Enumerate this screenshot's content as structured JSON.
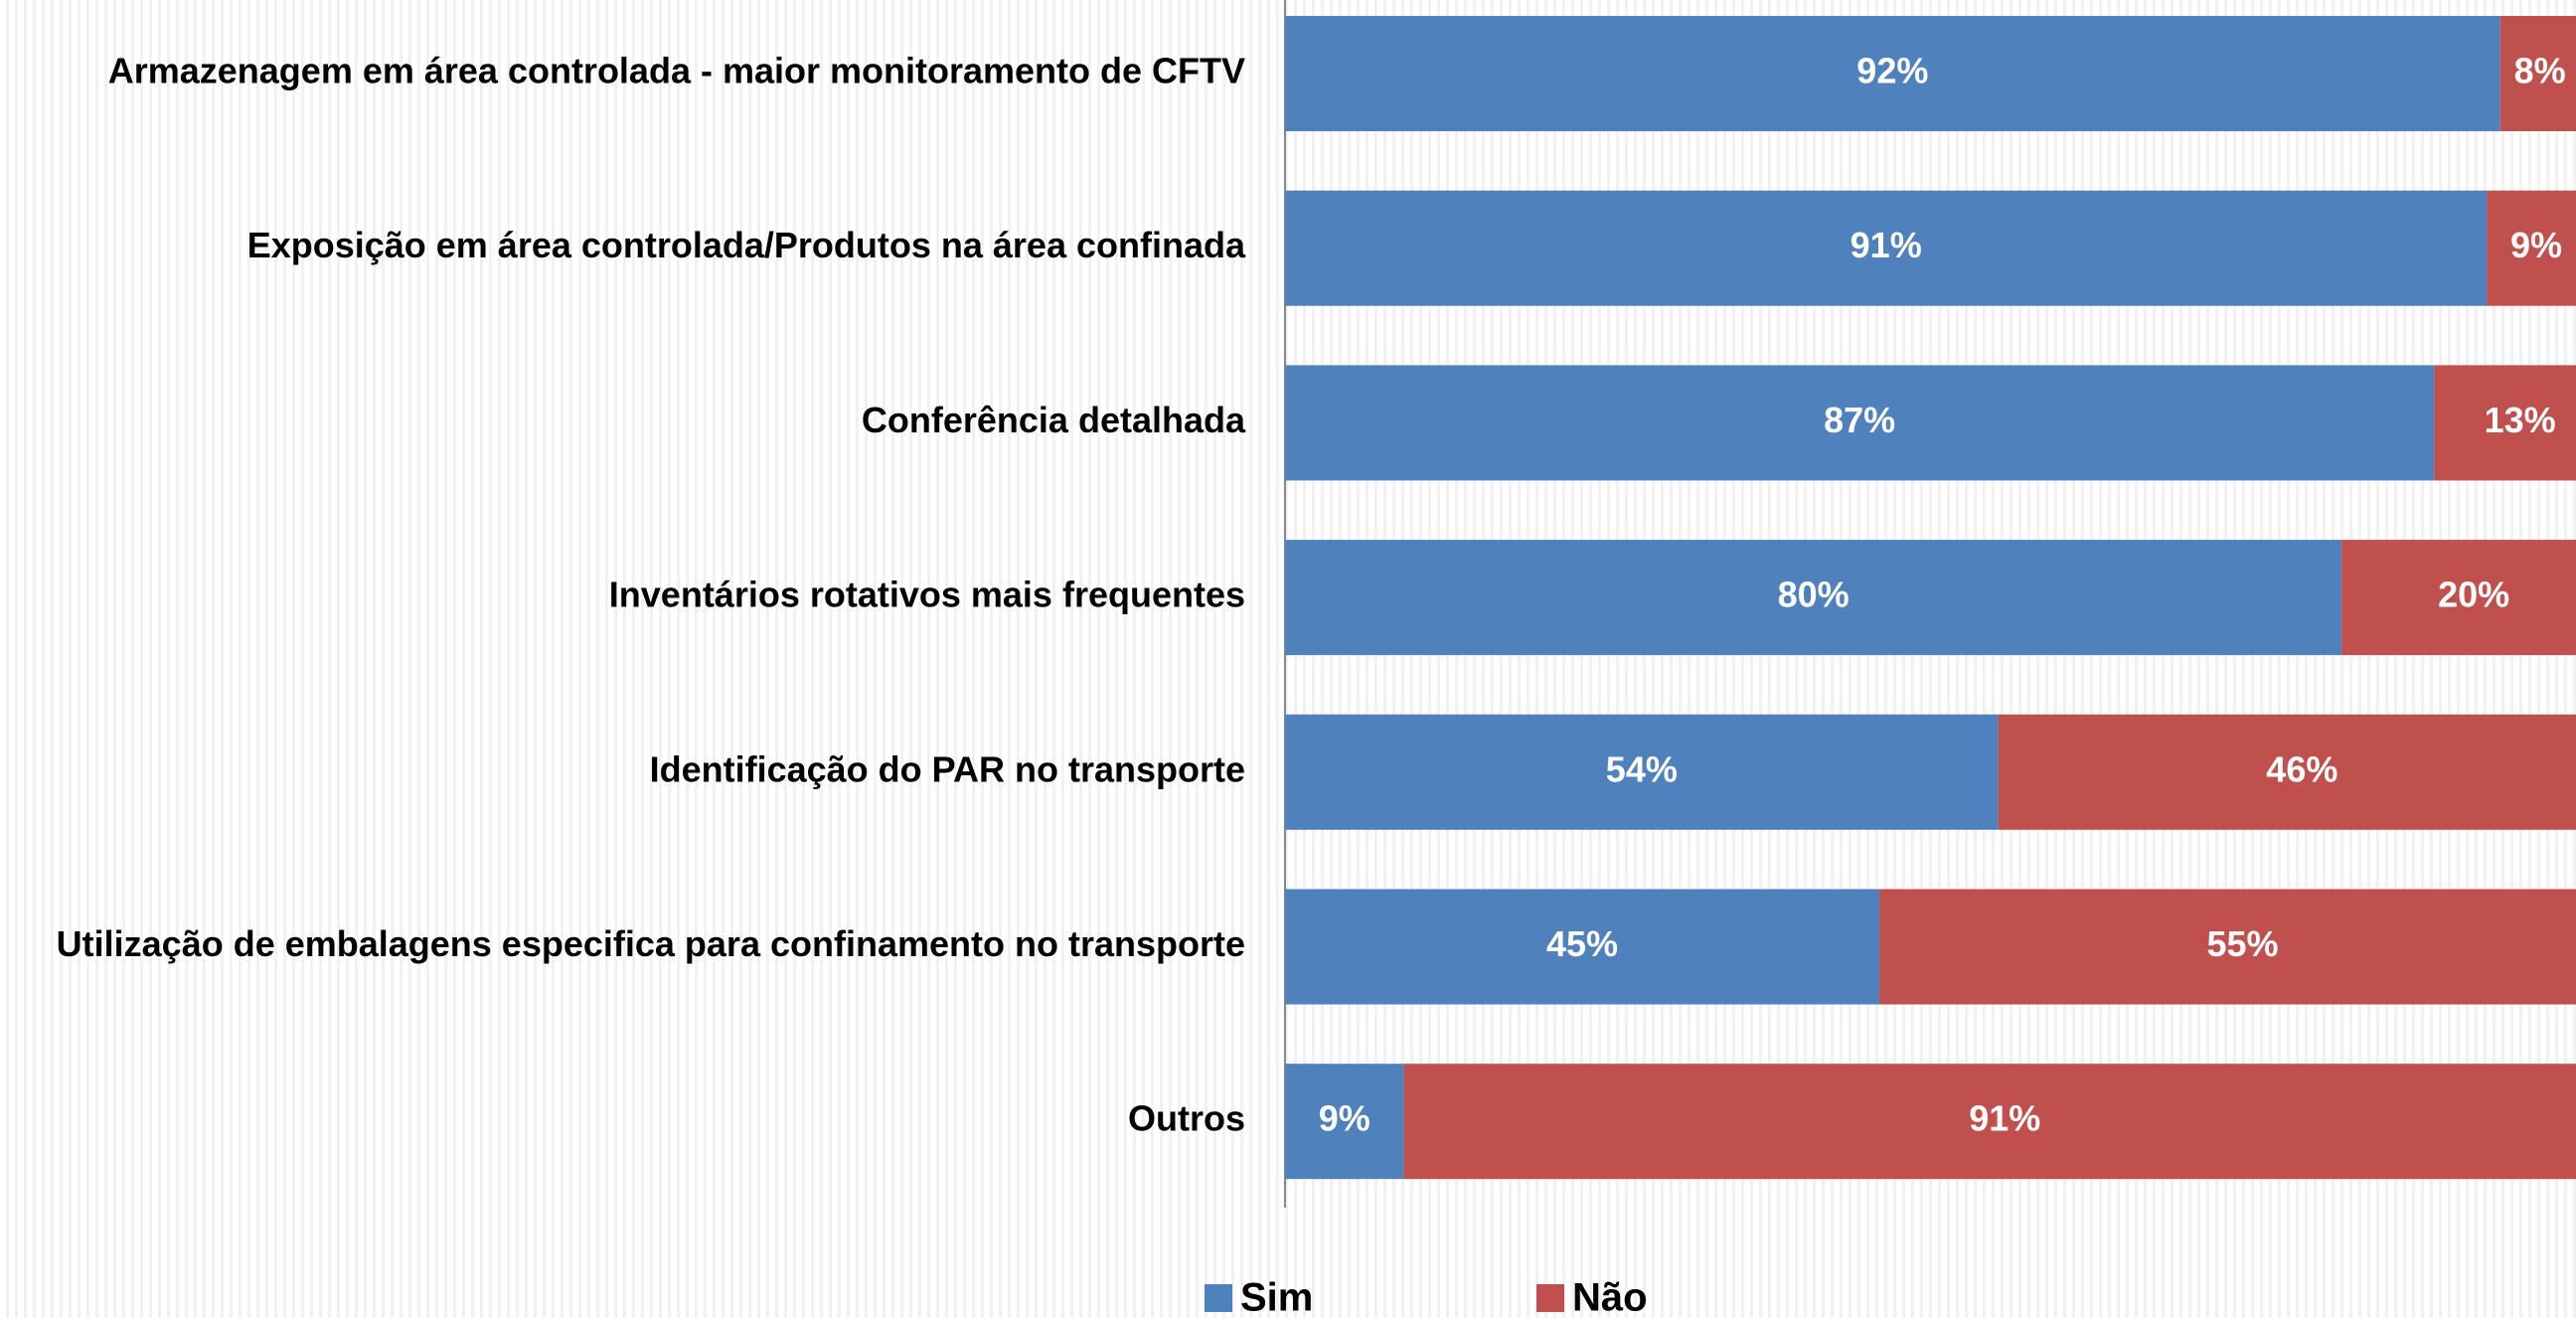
{
  "chart_data": {
    "type": "stacked_barh",
    "categories": [
      "Armazenagem em área controlada - maior monitoramento de CFTV",
      "Exposição em área controlada/Produtos na área confinada",
      "Conferência detalhada",
      "Inventários rotativos mais frequentes",
      "Identificação do PAR no transporte",
      "Utilização de embalagens especifica para confinamento no transporte",
      "Outros"
    ],
    "series": [
      {
        "name": "Sim",
        "color": "#4f81bd",
        "values": [
          92,
          91,
          87,
          80,
          54,
          45,
          9
        ],
        "value_labels": [
          "92%",
          "91%",
          "87%",
          "80%",
          "54%",
          "45%",
          "9%"
        ]
      },
      {
        "name": "Não",
        "color": "#c0504d",
        "values": [
          8,
          9,
          13,
          20,
          46,
          55,
          91
        ],
        "value_labels": [
          "8%",
          "9%",
          "13%",
          "20%",
          "46%",
          "55%",
          "91%"
        ]
      }
    ],
    "xlim": [
      0,
      100
    ],
    "legend": "bottom"
  }
}
